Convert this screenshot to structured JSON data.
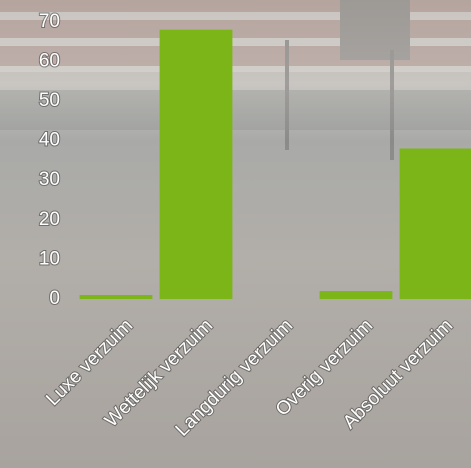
{
  "chart_data": {
    "type": "bar",
    "categories": [
      "Luxe verzuim",
      "Wettelijk verzuim",
      "Langdurig verzuim",
      "Overig verzuim",
      "Absoluut verzuim"
    ],
    "values": [
      1,
      68,
      0,
      2,
      38
    ],
    "color": "#7cb518",
    "ylim": [
      0,
      75
    ],
    "yticks": [
      0,
      10,
      20,
      30,
      40,
      50,
      60,
      70
    ],
    "grid": false
  }
}
